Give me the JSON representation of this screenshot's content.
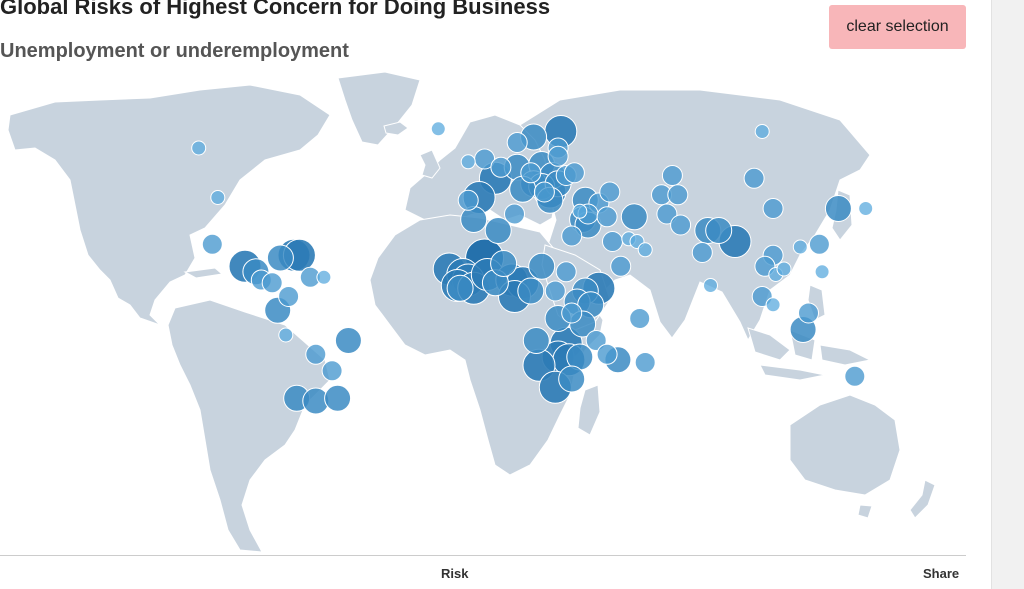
{
  "title": "Global Risks of Highest Concern for Doing Business",
  "subtitle": "Unemployment or underemployment",
  "clear_button": {
    "label": "clear selection",
    "color": "#f8b6b9"
  },
  "footer": {
    "left_label": "Risk",
    "right_label": "Share"
  },
  "colors": {
    "land": "#c8d3de",
    "bubble_light": "#5aa9dd",
    "bubble_dark": "#1c6ca9"
  },
  "chart_data": {
    "type": "scatter",
    "projection": "equirectangular",
    "points": [
      {
        "lon": -107,
        "lat": 58,
        "level": 1
      },
      {
        "lon": -100,
        "lat": 40,
        "level": 1
      },
      {
        "lon": -102,
        "lat": 23,
        "level": 2
      },
      {
        "lon": -90,
        "lat": 15,
        "level": 4
      },
      {
        "lon": -86,
        "lat": 13,
        "level": 3
      },
      {
        "lon": -84,
        "lat": 10,
        "level": 2
      },
      {
        "lon": -80,
        "lat": 9,
        "level": 2
      },
      {
        "lon": -77,
        "lat": 18,
        "level": 3
      },
      {
        "lon": -72,
        "lat": 19,
        "level": 4
      },
      {
        "lon": -70,
        "lat": 19,
        "level": 4
      },
      {
        "lon": -66,
        "lat": 11,
        "level": 2
      },
      {
        "lon": -61,
        "lat": 11,
        "level": 1
      },
      {
        "lon": -74,
        "lat": 4,
        "level": 2
      },
      {
        "lon": -78,
        "lat": -1,
        "level": 3
      },
      {
        "lon": -75,
        "lat": -10,
        "level": 1
      },
      {
        "lon": -64,
        "lat": -17,
        "level": 2
      },
      {
        "lon": -52,
        "lat": -12,
        "level": 3
      },
      {
        "lon": -58,
        "lat": -23,
        "level": 2
      },
      {
        "lon": -71,
        "lat": -33,
        "level": 3
      },
      {
        "lon": -64,
        "lat": -34,
        "level": 3
      },
      {
        "lon": -56,
        "lat": -33,
        "level": 3
      },
      {
        "lon": -19,
        "lat": 65,
        "level": 1
      },
      {
        "lon": -8,
        "lat": 53,
        "level": 1
      },
      {
        "lon": -2,
        "lat": 54,
        "level": 2
      },
      {
        "lon": 10,
        "lat": 60,
        "level": 2
      },
      {
        "lon": 16,
        "lat": 62,
        "level": 3
      },
      {
        "lon": 26,
        "lat": 64,
        "level": 4
      },
      {
        "lon": 25,
        "lat": 58,
        "level": 2
      },
      {
        "lon": 25,
        "lat": 55,
        "level": 2
      },
      {
        "lon": 4,
        "lat": 51,
        "level": 2
      },
      {
        "lon": 2,
        "lat": 47,
        "level": 4
      },
      {
        "lon": 10,
        "lat": 51,
        "level": 3
      },
      {
        "lon": 15,
        "lat": 49,
        "level": 2
      },
      {
        "lon": 19,
        "lat": 52,
        "level": 3
      },
      {
        "lon": 23,
        "lat": 48,
        "level": 3
      },
      {
        "lon": 16,
        "lat": 45,
        "level": 3
      },
      {
        "lon": 19,
        "lat": 44,
        "level": 3
      },
      {
        "lon": 22,
        "lat": 42,
        "level": 4
      },
      {
        "lon": 25,
        "lat": 45,
        "level": 3
      },
      {
        "lon": 20,
        "lat": 42,
        "level": 2
      },
      {
        "lon": 22,
        "lat": 39,
        "level": 3
      },
      {
        "lon": 28,
        "lat": 48,
        "level": 2
      },
      {
        "lon": 31,
        "lat": 49,
        "level": 2
      },
      {
        "lon": 12,
        "lat": 43,
        "level": 3
      },
      {
        "lon": -8,
        "lat": 39,
        "level": 2
      },
      {
        "lon": -4,
        "lat": 40,
        "level": 4
      },
      {
        "lon": 35,
        "lat": 39,
        "level": 3
      },
      {
        "lon": 40,
        "lat": 38,
        "level": 2
      },
      {
        "lon": 44,
        "lat": 42,
        "level": 2
      },
      {
        "lon": 33,
        "lat": 35,
        "level": 1
      },
      {
        "lon": -6,
        "lat": 32,
        "level": 3
      },
      {
        "lon": 3,
        "lat": 28,
        "level": 3
      },
      {
        "lon": 9,
        "lat": 34,
        "level": 2
      },
      {
        "lon": 34,
        "lat": 32,
        "level": 3
      },
      {
        "lon": 36,
        "lat": 34,
        "level": 2
      },
      {
        "lon": 36,
        "lat": 30,
        "level": 3
      },
      {
        "lon": 43,
        "lat": 33,
        "level": 2
      },
      {
        "lon": 53,
        "lat": 33,
        "level": 3
      },
      {
        "lon": 30,
        "lat": 26,
        "level": 2
      },
      {
        "lon": 45,
        "lat": 24,
        "level": 2
      },
      {
        "lon": 51,
        "lat": 25,
        "level": 1
      },
      {
        "lon": 54,
        "lat": 24,
        "level": 1
      },
      {
        "lon": 57,
        "lat": 21,
        "level": 1
      },
      {
        "lon": 48,
        "lat": 15,
        "level": 2
      },
      {
        "lon": 67,
        "lat": 48,
        "level": 2
      },
      {
        "lon": 63,
        "lat": 41,
        "level": 2
      },
      {
        "lon": 69,
        "lat": 41,
        "level": 2
      },
      {
        "lon": 65,
        "lat": 34,
        "level": 2
      },
      {
        "lon": 70,
        "lat": 30,
        "level": 2
      },
      {
        "lon": 80,
        "lat": 28,
        "level": 3
      },
      {
        "lon": 84,
        "lat": 28,
        "level": 3
      },
      {
        "lon": 90,
        "lat": 24,
        "level": 4
      },
      {
        "lon": 78,
        "lat": 20,
        "level": 2
      },
      {
        "lon": 81,
        "lat": 8,
        "level": 1
      },
      {
        "lon": 97,
        "lat": 47,
        "level": 2
      },
      {
        "lon": 104,
        "lat": 36,
        "level": 2
      },
      {
        "lon": 104,
        "lat": 19,
        "level": 2
      },
      {
        "lon": 101,
        "lat": 15,
        "level": 2
      },
      {
        "lon": 105,
        "lat": 12,
        "level": 1
      },
      {
        "lon": 108,
        "lat": 14,
        "level": 1
      },
      {
        "lon": 100,
        "lat": 4,
        "level": 2
      },
      {
        "lon": 104,
        "lat": 1,
        "level": 1
      },
      {
        "lon": 114,
        "lat": 22,
        "level": 1
      },
      {
        "lon": 121,
        "lat": 23,
        "level": 2
      },
      {
        "lon": 122,
        "lat": 13,
        "level": 1
      },
      {
        "lon": 128,
        "lat": 36,
        "level": 3
      },
      {
        "lon": 138,
        "lat": 36,
        "level": 1
      },
      {
        "lon": 117,
        "lat": -2,
        "level": 2
      },
      {
        "lon": 115,
        "lat": -8,
        "level": 3
      },
      {
        "lon": 134,
        "lat": -25,
        "level": 2
      },
      {
        "lon": 100,
        "lat": 64,
        "level": 1
      },
      {
        "lon": -15,
        "lat": 14,
        "level": 4
      },
      {
        "lon": -10,
        "lat": 12,
        "level": 4
      },
      {
        "lon": -8,
        "lat": 10,
        "level": 4
      },
      {
        "lon": -12,
        "lat": 8,
        "level": 4
      },
      {
        "lon": -11,
        "lat": 7,
        "level": 3
      },
      {
        "lon": -6,
        "lat": 7,
        "level": 4
      },
      {
        "lon": -2,
        "lat": 18,
        "level": 5
      },
      {
        "lon": -1,
        "lat": 12,
        "level": 4
      },
      {
        "lon": 2,
        "lat": 9,
        "level": 3
      },
      {
        "lon": 5,
        "lat": 16,
        "level": 3
      },
      {
        "lon": 8,
        "lat": 10,
        "level": 4
      },
      {
        "lon": 12,
        "lat": 9,
        "level": 4
      },
      {
        "lon": 9,
        "lat": 4,
        "level": 4
      },
      {
        "lon": 15,
        "lat": 6,
        "level": 3
      },
      {
        "lon": 19,
        "lat": 15,
        "level": 3
      },
      {
        "lon": 28,
        "lat": 13,
        "level": 2
      },
      {
        "lon": 24,
        "lat": 6,
        "level": 2
      },
      {
        "lon": 35,
        "lat": 6,
        "level": 3
      },
      {
        "lon": 40,
        "lat": 7,
        "level": 4
      },
      {
        "lon": 32,
        "lat": 2,
        "level": 3
      },
      {
        "lon": 37,
        "lat": 1,
        "level": 3
      },
      {
        "lon": 30,
        "lat": -2,
        "level": 2
      },
      {
        "lon": 34,
        "lat": -6,
        "level": 3
      },
      {
        "lon": 25,
        "lat": -4,
        "level": 3
      },
      {
        "lon": 39,
        "lat": -12,
        "level": 2
      },
      {
        "lon": 28,
        "lat": -13,
        "level": 4
      },
      {
        "lon": 17,
        "lat": -12,
        "level": 3
      },
      {
        "lon": 25,
        "lat": -18,
        "level": 4
      },
      {
        "lon": 29,
        "lat": -19,
        "level": 4
      },
      {
        "lon": 33,
        "lat": -18,
        "level": 3
      },
      {
        "lon": 30,
        "lat": -26,
        "level": 3
      },
      {
        "lon": 18,
        "lat": -21,
        "level": 4
      },
      {
        "lon": 24,
        "lat": -29,
        "level": 4
      },
      {
        "lon": 47,
        "lat": -19,
        "level": 3
      },
      {
        "lon": 57,
        "lat": -20,
        "level": 2
      },
      {
        "lon": 55,
        "lat": -4,
        "level": 2
      },
      {
        "lon": 43,
        "lat": -17,
        "level": 2
      }
    ]
  }
}
